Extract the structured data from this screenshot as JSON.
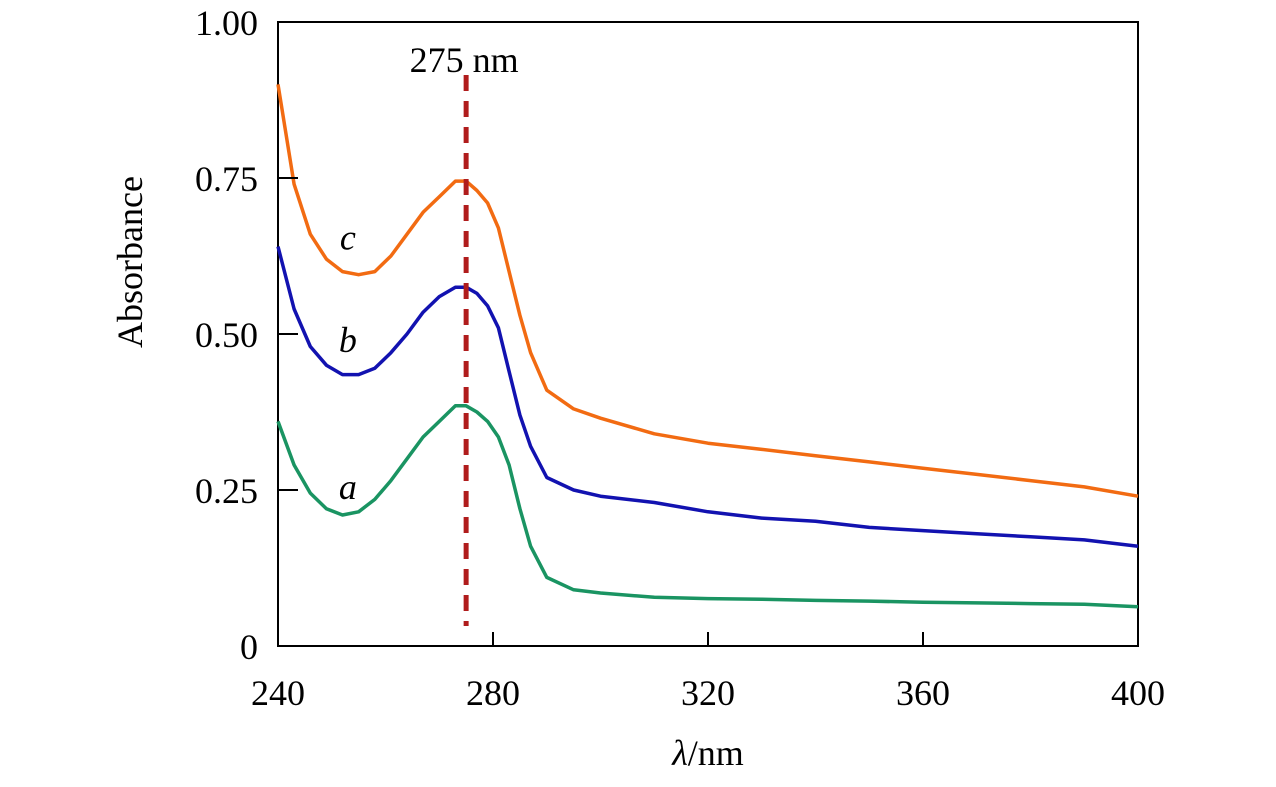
{
  "chart_data": {
    "type": "line",
    "xlabel": "λ/nm",
    "xlabel_symbol": "λ",
    "xlabel_unit": "/nm",
    "ylabel": "Absorbance",
    "xlim": [
      240,
      400
    ],
    "ylim": [
      0,
      1.0
    ],
    "x_ticks": [
      240,
      280,
      320,
      360,
      400
    ],
    "x_tick_labels": [
      "240",
      "280",
      "320",
      "360",
      "400"
    ],
    "y_ticks": [
      0,
      0.25,
      0.5,
      0.75,
      1.0
    ],
    "y_tick_labels": [
      "0",
      "0.25",
      "0.50",
      "0.75",
      "1.00"
    ],
    "grid": false,
    "annotation": {
      "text": "275 nm",
      "x": 275,
      "line_style": "dashed",
      "color": "#b01c1c"
    },
    "series": [
      {
        "name": "a",
        "color": "#1a9462",
        "label_at": [
          253,
          0.255
        ],
        "x": [
          240,
          243,
          246,
          249,
          252,
          255,
          258,
          261,
          264,
          267,
          270,
          273,
          275,
          277,
          279,
          281,
          283,
          285,
          287,
          290,
          295,
          300,
          310,
          320,
          330,
          340,
          350,
          360,
          370,
          380,
          390,
          400
        ],
        "y": [
          0.36,
          0.29,
          0.245,
          0.22,
          0.21,
          0.215,
          0.235,
          0.265,
          0.3,
          0.335,
          0.36,
          0.385,
          0.385,
          0.375,
          0.36,
          0.335,
          0.29,
          0.22,
          0.16,
          0.11,
          0.09,
          0.085,
          0.078,
          0.076,
          0.075,
          0.073,
          0.072,
          0.07,
          0.069,
          0.068,
          0.067,
          0.063
        ]
      },
      {
        "name": "b",
        "color": "#1212b0",
        "label_at": [
          253,
          0.49
        ],
        "x": [
          240,
          243,
          246,
          249,
          252,
          255,
          258,
          261,
          264,
          267,
          270,
          273,
          275,
          277,
          279,
          281,
          283,
          285,
          287,
          290,
          295,
          300,
          310,
          320,
          330,
          340,
          350,
          360,
          370,
          380,
          390,
          400
        ],
        "y": [
          0.64,
          0.54,
          0.48,
          0.45,
          0.435,
          0.435,
          0.445,
          0.47,
          0.5,
          0.535,
          0.56,
          0.575,
          0.575,
          0.565,
          0.545,
          0.51,
          0.44,
          0.37,
          0.32,
          0.27,
          0.25,
          0.24,
          0.23,
          0.215,
          0.205,
          0.2,
          0.19,
          0.185,
          0.18,
          0.175,
          0.17,
          0.16
        ]
      },
      {
        "name": "c",
        "color": "#f26b12",
        "label_at": [
          253,
          0.655
        ],
        "x": [
          240,
          243,
          246,
          249,
          252,
          255,
          258,
          261,
          264,
          267,
          270,
          273,
          275,
          277,
          279,
          281,
          283,
          285,
          287,
          290,
          295,
          300,
          310,
          320,
          330,
          340,
          350,
          360,
          370,
          380,
          390,
          400
        ],
        "y": [
          0.9,
          0.74,
          0.66,
          0.62,
          0.6,
          0.595,
          0.6,
          0.625,
          0.66,
          0.695,
          0.72,
          0.745,
          0.745,
          0.73,
          0.71,
          0.67,
          0.6,
          0.53,
          0.47,
          0.41,
          0.38,
          0.365,
          0.34,
          0.325,
          0.315,
          0.305,
          0.295,
          0.285,
          0.275,
          0.265,
          0.255,
          0.24
        ]
      }
    ]
  }
}
